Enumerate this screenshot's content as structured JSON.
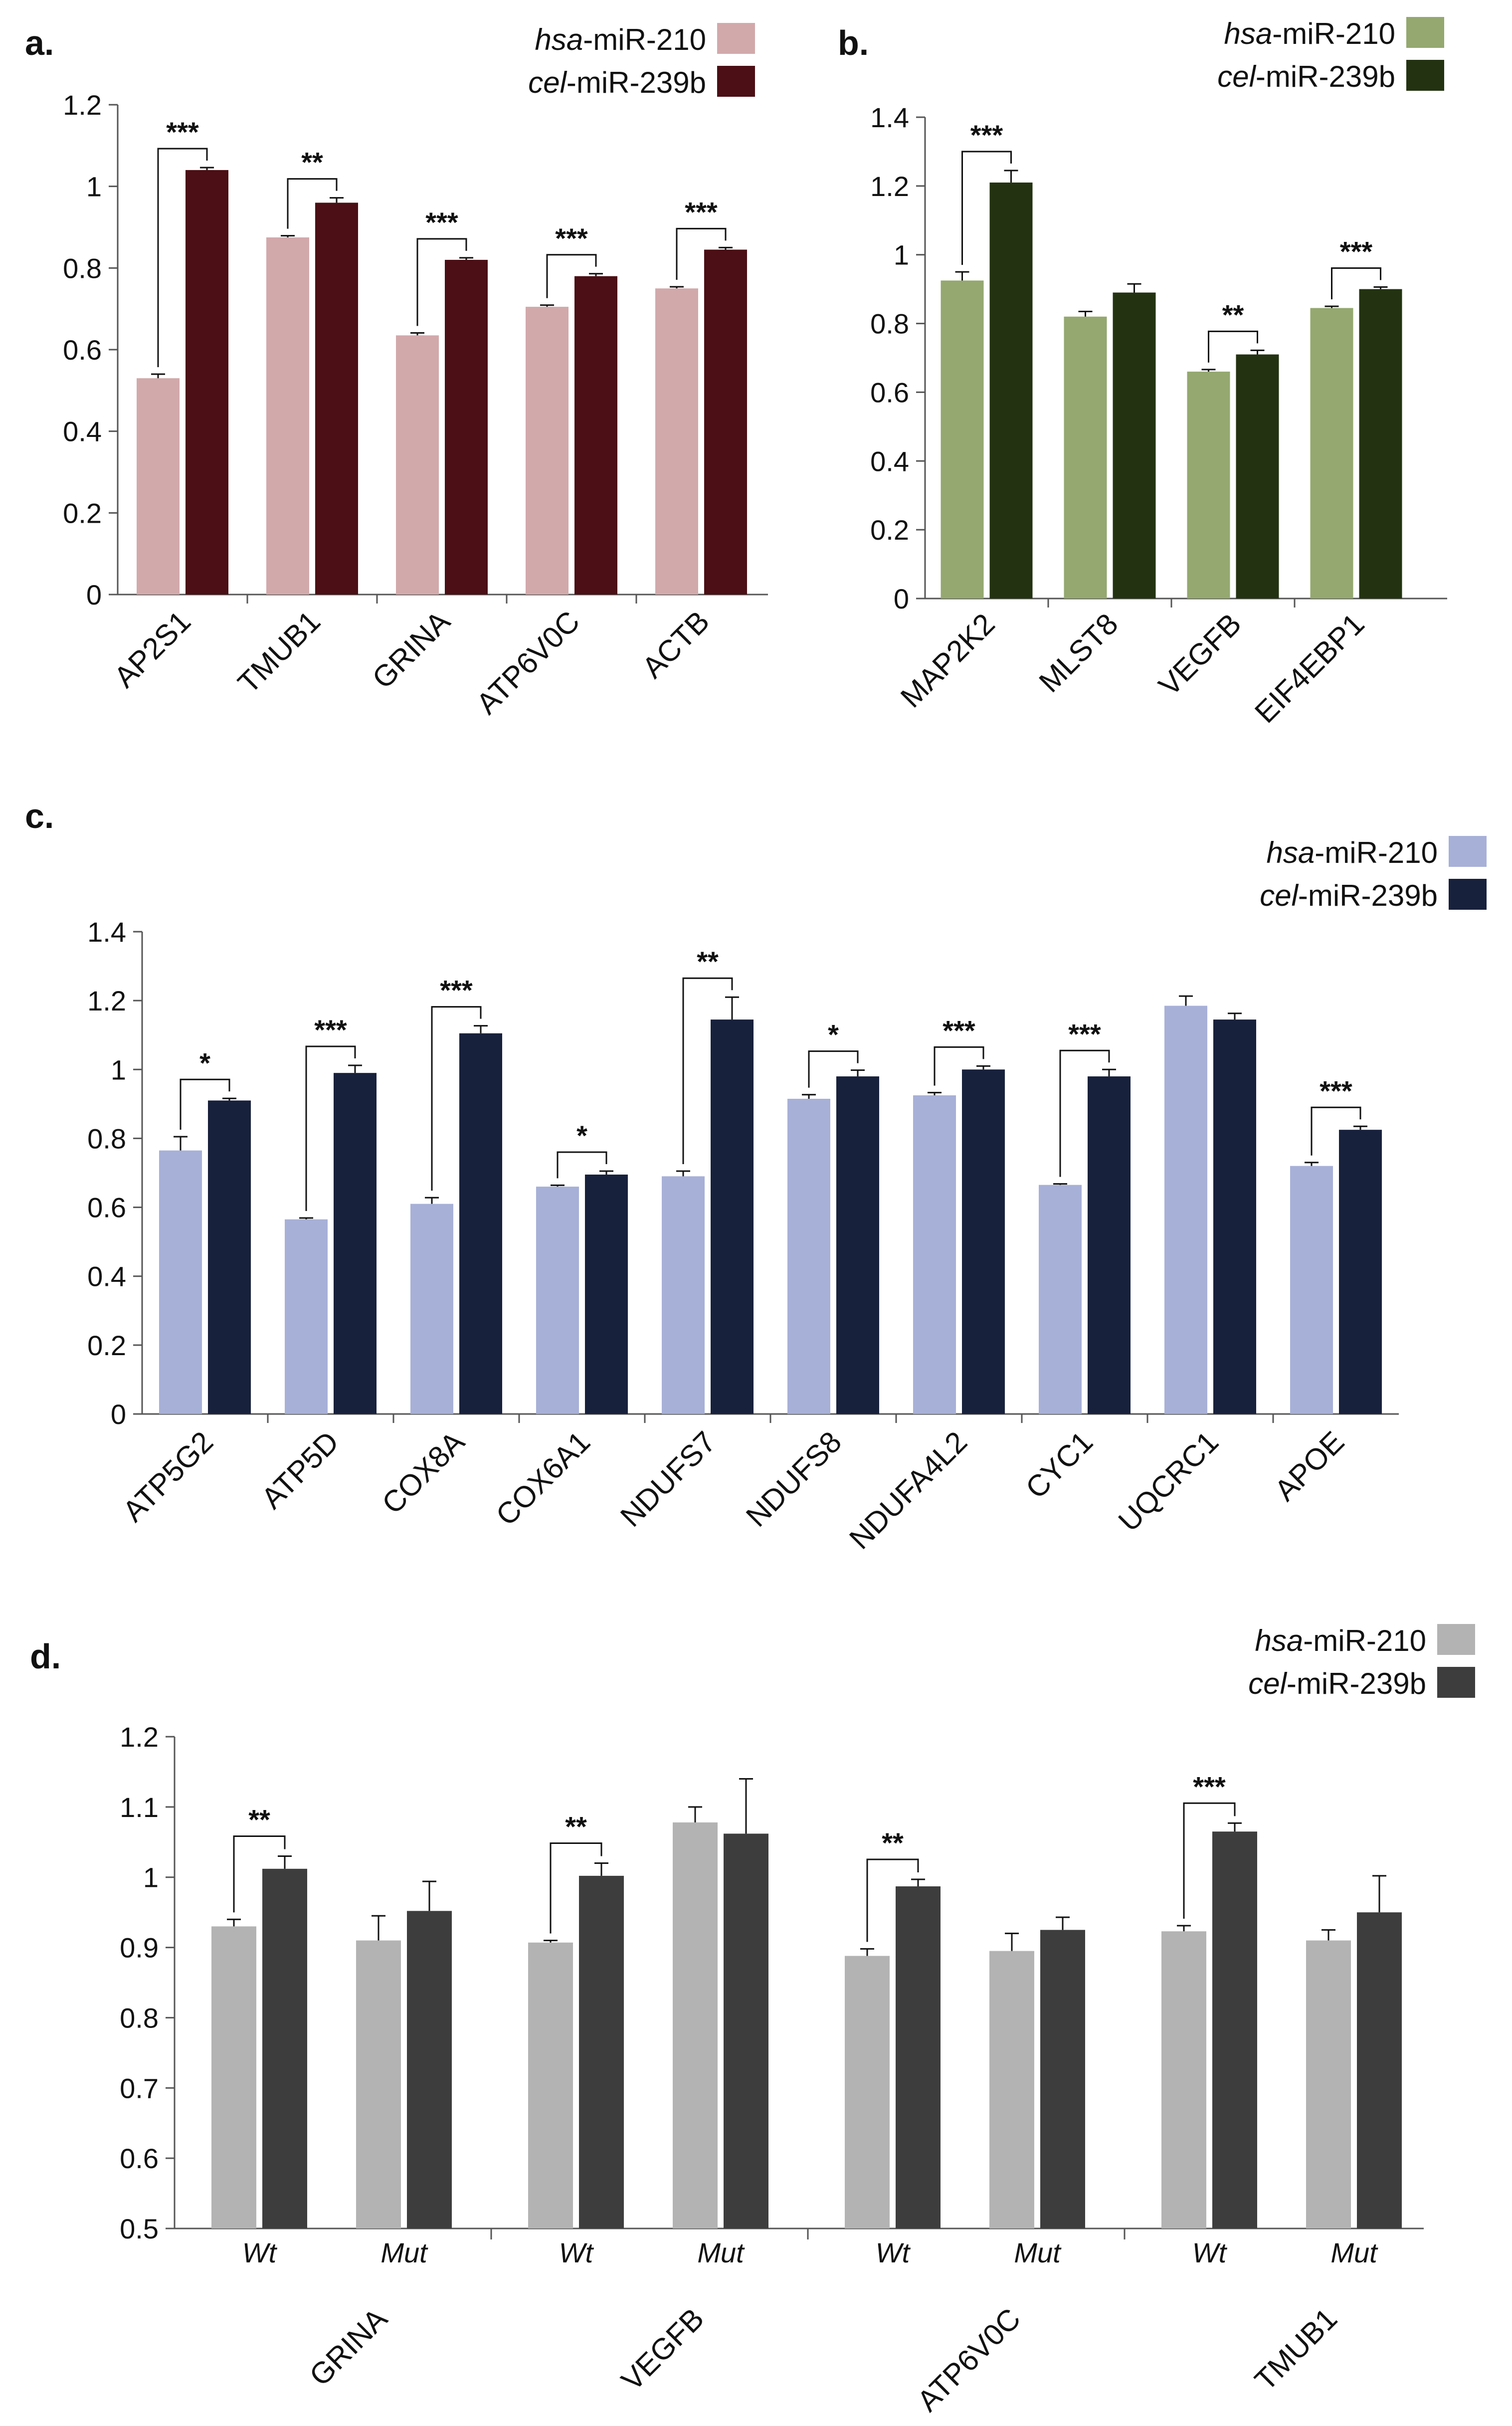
{
  "series_names": [
    "hsa-miR-210",
    "cel-miR-239b"
  ],
  "chart_data": [
    {
      "type": "bar",
      "panel_label": "a.",
      "colors": [
        "#d2a9ab",
        "#4b0f15"
      ],
      "categories": [
        "AP2S1",
        "TMUB1",
        "GRINA",
        "ATP6V0C",
        "ACTB"
      ],
      "series": [
        {
          "name": "hsa-miR-210",
          "values": [
            0.53,
            0.875,
            0.635,
            0.705,
            0.75
          ],
          "errors": [
            0.01,
            0.004,
            0.006,
            0.004,
            0.004
          ]
        },
        {
          "name": "cel-miR-239b",
          "values": [
            1.04,
            0.96,
            0.82,
            0.78,
            0.845
          ],
          "errors": [
            0.006,
            0.012,
            0.005,
            0.006,
            0.005
          ]
        }
      ],
      "significance": [
        "***",
        "**",
        "***",
        "***",
        "***"
      ],
      "ylim": [
        0,
        1.2
      ],
      "yticks": [
        "0",
        "0.2",
        "0.4",
        "0.6",
        "0.8",
        "1",
        "1.2"
      ]
    },
    {
      "type": "bar",
      "panel_label": "b.",
      "colors": [
        "#94a86f",
        "#233311"
      ],
      "categories": [
        "MAP2K2",
        "MLST8",
        "VEGFB",
        "EIF4EBP1"
      ],
      "series": [
        {
          "name": "hsa-miR-210",
          "values": [
            0.925,
            0.82,
            0.66,
            0.845
          ],
          "errors": [
            0.025,
            0.015,
            0.006,
            0.005
          ]
        },
        {
          "name": "cel-miR-239b",
          "values": [
            1.21,
            0.89,
            0.71,
            0.9
          ],
          "errors": [
            0.035,
            0.025,
            0.012,
            0.006
          ]
        }
      ],
      "significance": [
        "***",
        "",
        "**",
        "***"
      ],
      "ylim": [
        0,
        1.4
      ],
      "yticks": [
        "0",
        "0.2",
        "0.4",
        "0.6",
        "0.8",
        "1",
        "1.2",
        "1.4"
      ]
    },
    {
      "type": "bar",
      "panel_label": "c.",
      "colors": [
        "#a7b0d7",
        "#18213c"
      ],
      "categories": [
        "ATP5G2",
        "ATP5D",
        "COX8A",
        "COX6A1",
        "NDUFS7",
        "NDUFS8",
        "NDUFA4L2",
        "CYC1",
        "UQCRC1",
        "APOE"
      ],
      "series": [
        {
          "name": "hsa-miR-210",
          "values": [
            0.765,
            0.565,
            0.61,
            0.66,
            0.69,
            0.915,
            0.925,
            0.665,
            1.185,
            0.72
          ],
          "errors": [
            0.04,
            0.004,
            0.018,
            0.004,
            0.015,
            0.012,
            0.008,
            0.003,
            0.028,
            0.01
          ]
        },
        {
          "name": "cel-miR-239b",
          "values": [
            0.91,
            0.99,
            1.105,
            0.695,
            1.145,
            0.98,
            1.0,
            0.98,
            1.145,
            0.825
          ],
          "errors": [
            0.006,
            0.022,
            0.022,
            0.01,
            0.065,
            0.018,
            0.01,
            0.02,
            0.018,
            0.01
          ]
        }
      ],
      "significance": [
        "*",
        "***",
        "***",
        "*",
        "**",
        "*",
        "***",
        "***",
        "",
        "***"
      ],
      "ylim": [
        0,
        1.4
      ],
      "yticks": [
        "0",
        "0.2",
        "0.4",
        "0.6",
        "0.8",
        "1",
        "1.2",
        "1.4"
      ]
    },
    {
      "type": "bar",
      "panel_label": "d.",
      "colors": [
        "#b3b3b3",
        "#3d3d3d"
      ],
      "groups": [
        "GRINA",
        "VEGFB",
        "ATP6V0C",
        "TMUB1"
      ],
      "subcategories": [
        "Wt",
        "Mut"
      ],
      "series": [
        {
          "name": "hsa-miR-210",
          "values": [
            0.93,
            0.91,
            0.907,
            1.078,
            0.888,
            0.895,
            0.923,
            0.91
          ],
          "errors": [
            0.01,
            0.035,
            0.003,
            0.022,
            0.01,
            0.025,
            0.008,
            0.015
          ]
        },
        {
          "name": "cel-miR-239b",
          "values": [
            1.012,
            0.952,
            1.002,
            1.062,
            0.987,
            0.925,
            1.065,
            0.95
          ],
          "errors": [
            0.018,
            0.042,
            0.018,
            0.078,
            0.01,
            0.018,
            0.012,
            0.052
          ]
        }
      ],
      "significance": [
        "**",
        "",
        "**",
        "",
        "**",
        "",
        "***",
        ""
      ],
      "ylim": [
        0.5,
        1.2
      ],
      "yticks": [
        "0.5",
        "0.6",
        "0.7",
        "0.8",
        "0.9",
        "1",
        "1.1",
        "1.2"
      ]
    }
  ]
}
